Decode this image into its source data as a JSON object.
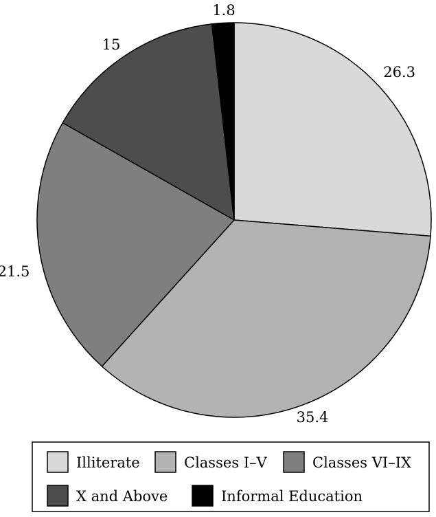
{
  "chart_data": {
    "type": "pie",
    "title": "",
    "start_angle_deg": 0,
    "direction": "clockwise",
    "slices": [
      {
        "label": "Illiterate",
        "value": 26.3,
        "value_label": "26.3",
        "color": "#d9d9d9"
      },
      {
        "label": "Classes I–V",
        "value": 35.4,
        "value_label": "35.4",
        "color": "#b3b3b3"
      },
      {
        "label": "Classes VI–IX",
        "value": 21.5,
        "value_label": "21.5",
        "color": "#7f7f7f"
      },
      {
        "label": "X and Above",
        "value": 15,
        "value_label": "15",
        "color": "#4d4d4d"
      },
      {
        "label": "Informal Education",
        "value": 1.8,
        "value_label": "1.8",
        "color": "#000000"
      }
    ],
    "legend": {
      "placement": "bottom",
      "entries": [
        "Illiterate",
        "Classes I–V",
        "Classes VI–IX",
        "X and Above",
        "Informal Education"
      ]
    }
  }
}
